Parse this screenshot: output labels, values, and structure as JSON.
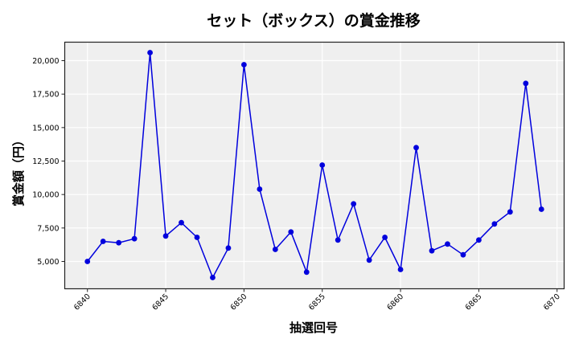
{
  "chart_data": {
    "type": "line",
    "title": "セット（ボックス）の賞金推移",
    "xlabel": "抽選回号",
    "ylabel": "賞金額（円）",
    "x": [
      6840,
      6841,
      6842,
      6843,
      6844,
      6845,
      6846,
      6847,
      6848,
      6849,
      6850,
      6851,
      6852,
      6853,
      6854,
      6855,
      6856,
      6857,
      6858,
      6859,
      6860,
      6861,
      6862,
      6863,
      6864,
      6865,
      6866,
      6867,
      6868,
      6869
    ],
    "series": [
      {
        "name": "賞金額",
        "color": "#0000DD",
        "values": [
          5000,
          6500,
          6400,
          6700,
          20600,
          6900,
          7900,
          6800,
          3800,
          6000,
          19700,
          10400,
          5900,
          7200,
          4200,
          12200,
          6600,
          9300,
          5100,
          6800,
          4400,
          13500,
          5800,
          6300,
          5500,
          6600,
          7800,
          8700,
          18300,
          8900
        ]
      }
    ],
    "xticks": [
      6840,
      6845,
      6850,
      6855,
      6860,
      6865,
      6870
    ],
    "yticks": [
      5000,
      7500,
      10000,
      12500,
      15000,
      17500,
      20000
    ],
    "ytick_labels": [
      "5,000",
      "7,500",
      "10,000",
      "12,500",
      "15,000",
      "17,500",
      "20,000"
    ],
    "xlim": [
      6838.55,
      6870.45
    ],
    "ylim": [
      2960,
      21380
    ],
    "grid": true,
    "legend": null,
    "plot_background": "#EFEFEF",
    "grid_color": "#FFFFFF"
  }
}
